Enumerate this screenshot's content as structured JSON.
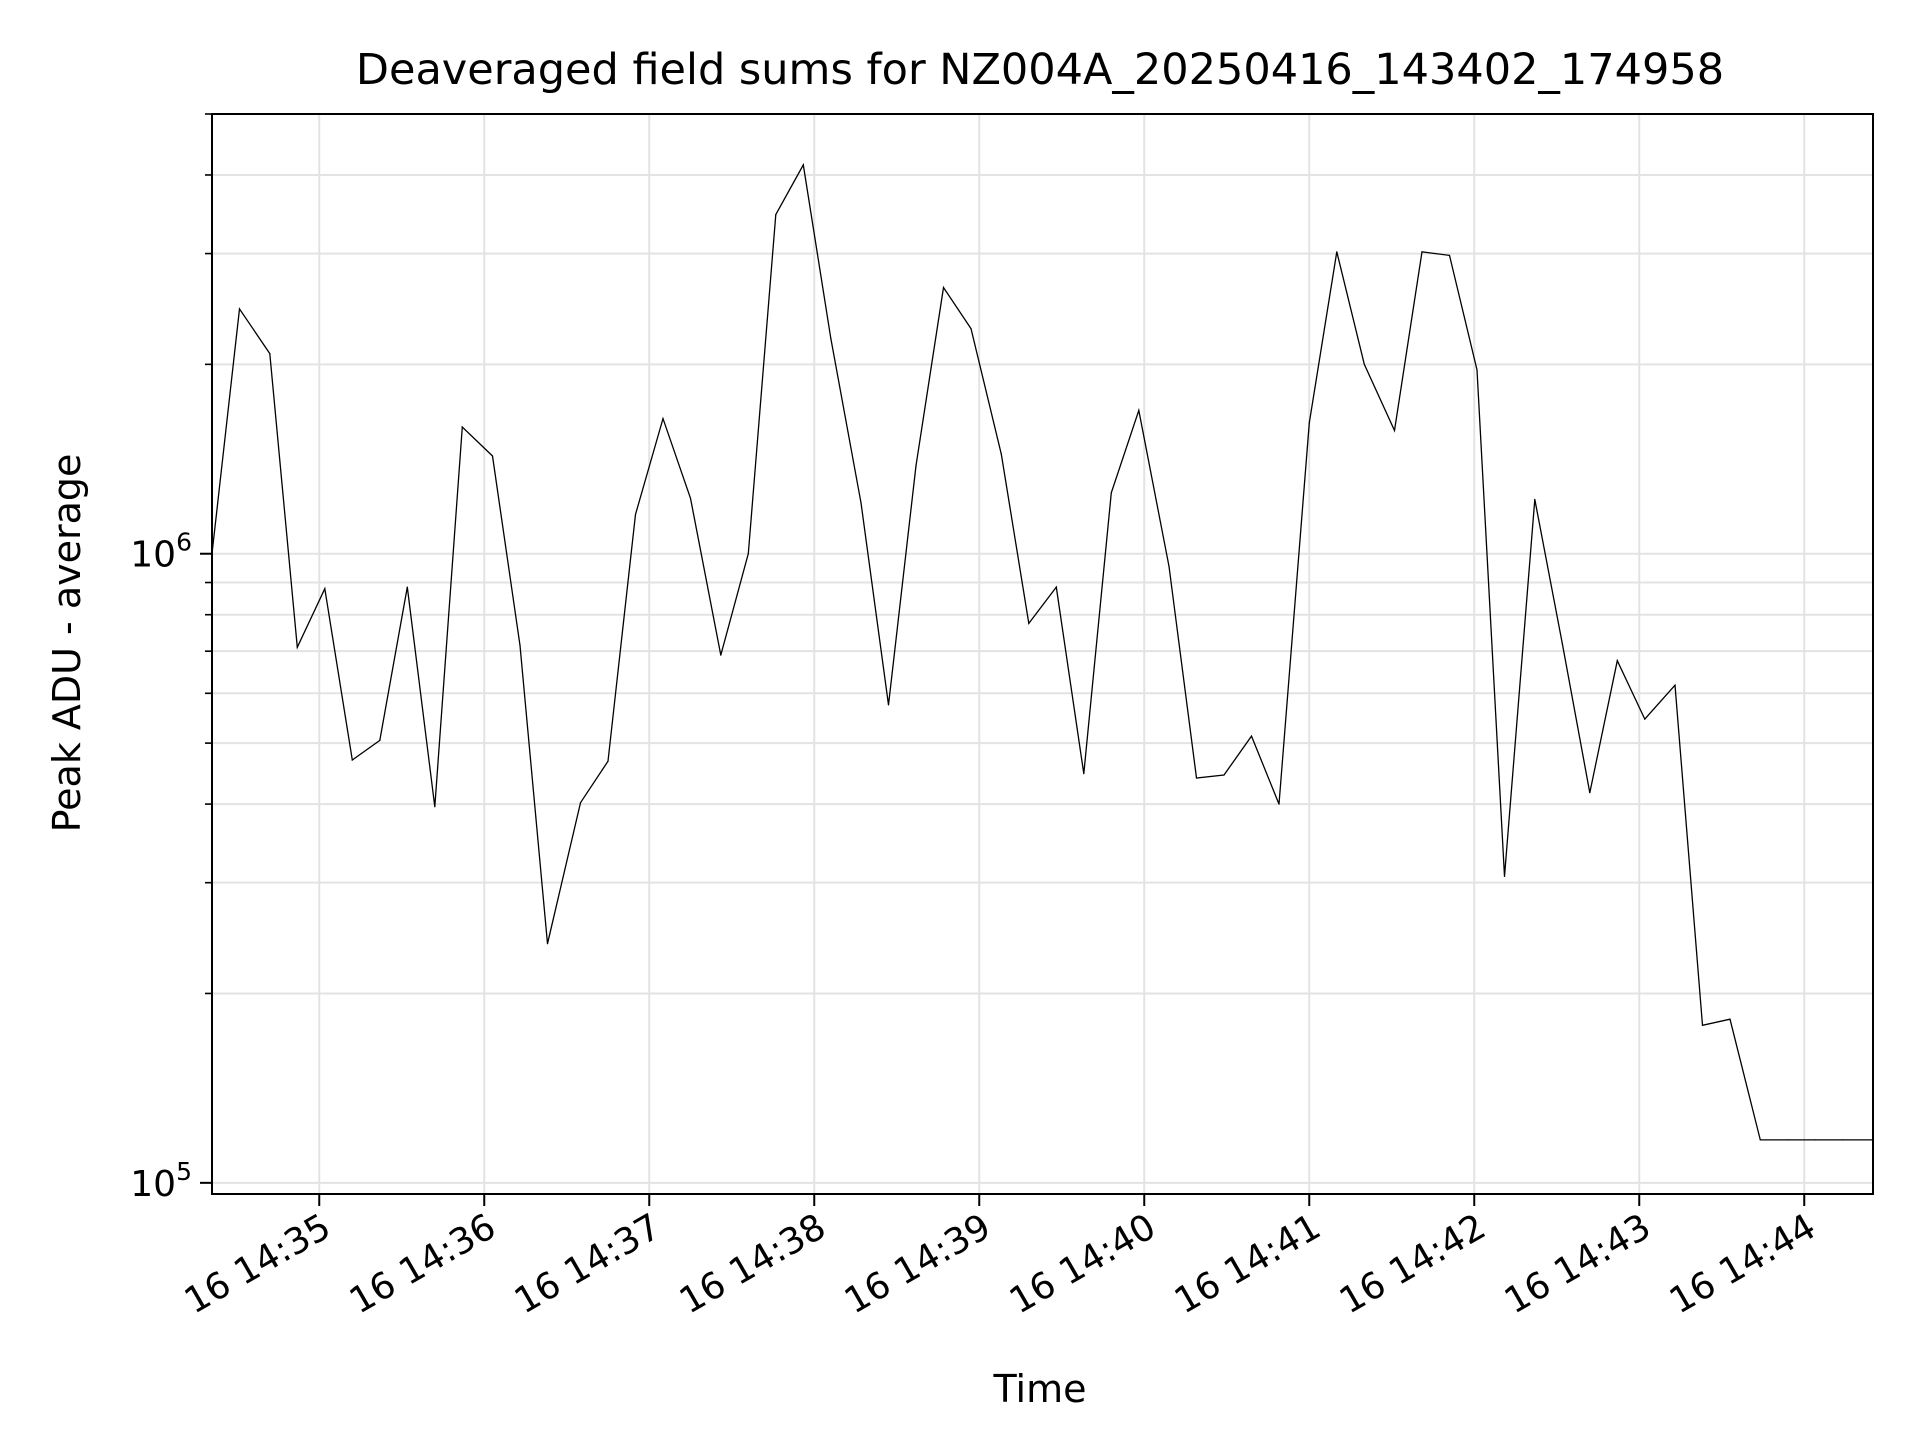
{
  "chart_data": {
    "type": "line",
    "title": "Deaveraged field sums for NZ004A_20250416_143402_174958",
    "xlabel": "Time",
    "ylabel": "Peak ADU - average",
    "y_scale": "log",
    "ylim": [
      96000,
      5000000
    ],
    "xlim": [
      "2025-04-16 14:34:21",
      "2025-04-16 14:44:25"
    ],
    "grid": true,
    "line_color": "#000000",
    "x_ticks": [
      {
        "t": "2025-04-16 14:35:00",
        "label": "16 14:35"
      },
      {
        "t": "2025-04-16 14:36:00",
        "label": "16 14:36"
      },
      {
        "t": "2025-04-16 14:37:00",
        "label": "16 14:37"
      },
      {
        "t": "2025-04-16 14:38:00",
        "label": "16 14:38"
      },
      {
        "t": "2025-04-16 14:39:00",
        "label": "16 14:39"
      },
      {
        "t": "2025-04-16 14:40:00",
        "label": "16 14:40"
      },
      {
        "t": "2025-04-16 14:41:00",
        "label": "16 14:41"
      },
      {
        "t": "2025-04-16 14:42:00",
        "label": "16 14:42"
      },
      {
        "t": "2025-04-16 14:43:00",
        "label": "16 14:43"
      },
      {
        "t": "2025-04-16 14:44:00",
        "label": "16 14:44"
      }
    ],
    "y_ticks": [
      {
        "value": 100000,
        "base": "10",
        "exp": "5"
      },
      {
        "value": 1000000,
        "base": "10",
        "exp": "6"
      }
    ],
    "series": [
      {
        "x": [
          "2025-04-16 14:34:21",
          "2025-04-16 14:34:31",
          "2025-04-16 14:34:42",
          "2025-04-16 14:34:52",
          "2025-04-16 14:35:02",
          "2025-04-16 14:35:12",
          "2025-04-16 14:35:22",
          "2025-04-16 14:35:32",
          "2025-04-16 14:35:42",
          "2025-04-16 14:35:52",
          "2025-04-16 14:36:03",
          "2025-04-16 14:36:13",
          "2025-04-16 14:36:23",
          "2025-04-16 14:36:35",
          "2025-04-16 14:36:45",
          "2025-04-16 14:36:55",
          "2025-04-16 14:37:05",
          "2025-04-16 14:37:15",
          "2025-04-16 14:37:26",
          "2025-04-16 14:37:36",
          "2025-04-16 14:37:46",
          "2025-04-16 14:37:56",
          "2025-04-16 14:38:06",
          "2025-04-16 14:38:17",
          "2025-04-16 14:38:27",
          "2025-04-16 14:38:37",
          "2025-04-16 14:38:47",
          "2025-04-16 14:38:57",
          "2025-04-16 14:39:08",
          "2025-04-16 14:39:18",
          "2025-04-16 14:39:28",
          "2025-04-16 14:39:38",
          "2025-04-16 14:39:48",
          "2025-04-16 14:39:58",
          "2025-04-16 14:40:09",
          "2025-04-16 14:40:19",
          "2025-04-16 14:40:29",
          "2025-04-16 14:40:39",
          "2025-04-16 14:40:49",
          "2025-04-16 14:41:00",
          "2025-04-16 14:41:10",
          "2025-04-16 14:41:20",
          "2025-04-16 14:41:31",
          "2025-04-16 14:41:41",
          "2025-04-16 14:41:51",
          "2025-04-16 14:42:01",
          "2025-04-16 14:42:11",
          "2025-04-16 14:42:22",
          "2025-04-16 14:42:32",
          "2025-04-16 14:42:42",
          "2025-04-16 14:42:52",
          "2025-04-16 14:43:02",
          "2025-04-16 14:43:13",
          "2025-04-16 14:43:23",
          "2025-04-16 14:43:33",
          "2025-04-16 14:43:44",
          "2025-04-16 14:43:54",
          "2025-04-16 14:44:04",
          "2025-04-16 14:44:14",
          "2025-04-16 14:44:25"
        ],
        "y": [
          1000000,
          2450000,
          2080000,
          710000,
          880000,
          470000,
          505000,
          885000,
          396000,
          1590000,
          1430000,
          715000,
          240000,
          402000,
          468000,
          1155000,
          1640000,
          1225000,
          690000,
          1000000,
          3460000,
          4150000,
          2200000,
          1205000,
          575000,
          1380000,
          2650000,
          2280000,
          1440000,
          775000,
          885000,
          447000,
          1250000,
          1690000,
          955000,
          440000,
          445000,
          513000,
          400000,
          1615000,
          3020000,
          2000000,
          1570000,
          3020000,
          2980000,
          1960000,
          307000,
          1220000,
          720000,
          417000,
          676000,
          546000,
          618000,
          178000,
          182000,
          117000,
          117000,
          117000,
          117000,
          117000
        ]
      }
    ]
  }
}
